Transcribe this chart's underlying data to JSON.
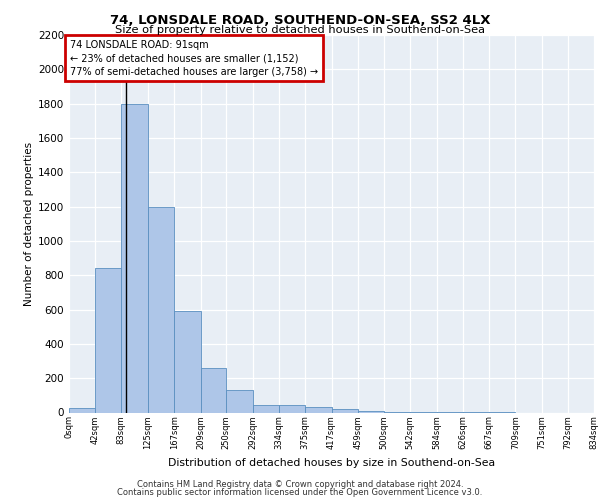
{
  "title": "74, LONSDALE ROAD, SOUTHEND-ON-SEA, SS2 4LX",
  "subtitle": "Size of property relative to detached houses in Southend-on-Sea",
  "xlabel": "Distribution of detached houses by size in Southend-on-Sea",
  "ylabel": "Number of detached properties",
  "bin_edges": [
    0,
    42,
    83,
    125,
    167,
    209,
    250,
    292,
    334,
    375,
    417,
    459,
    500,
    542,
    584,
    626,
    667,
    709,
    751,
    792,
    834
  ],
  "bin_labels": [
    "0sqm",
    "42sqm",
    "83sqm",
    "125sqm",
    "167sqm",
    "209sqm",
    "250sqm",
    "292sqm",
    "334sqm",
    "375sqm",
    "417sqm",
    "459sqm",
    "500sqm",
    "542sqm",
    "584sqm",
    "626sqm",
    "667sqm",
    "709sqm",
    "751sqm",
    "792sqm",
    "834sqm"
  ],
  "bar_values": [
    25,
    840,
    1800,
    1200,
    590,
    260,
    130,
    45,
    45,
    30,
    20,
    10,
    5,
    3,
    2,
    1,
    1,
    0,
    0,
    0
  ],
  "bar_color": "#aec6e8",
  "bar_edge_color": "#5a8fc0",
  "property_line_x": 91,
  "annotation_line1": "74 LONSDALE ROAD: 91sqm",
  "annotation_line2": "← 23% of detached houses are smaller (1,152)",
  "annotation_line3": "77% of semi-detached houses are larger (3,758) →",
  "annotation_box_color": "#cc0000",
  "ylim": [
    0,
    2200
  ],
  "yticks": [
    0,
    200,
    400,
    600,
    800,
    1000,
    1200,
    1400,
    1600,
    1800,
    2000,
    2200
  ],
  "background_color": "#e8eef5",
  "footer_line1": "Contains HM Land Registry data © Crown copyright and database right 2024.",
  "footer_line2": "Contains public sector information licensed under the Open Government Licence v3.0."
}
